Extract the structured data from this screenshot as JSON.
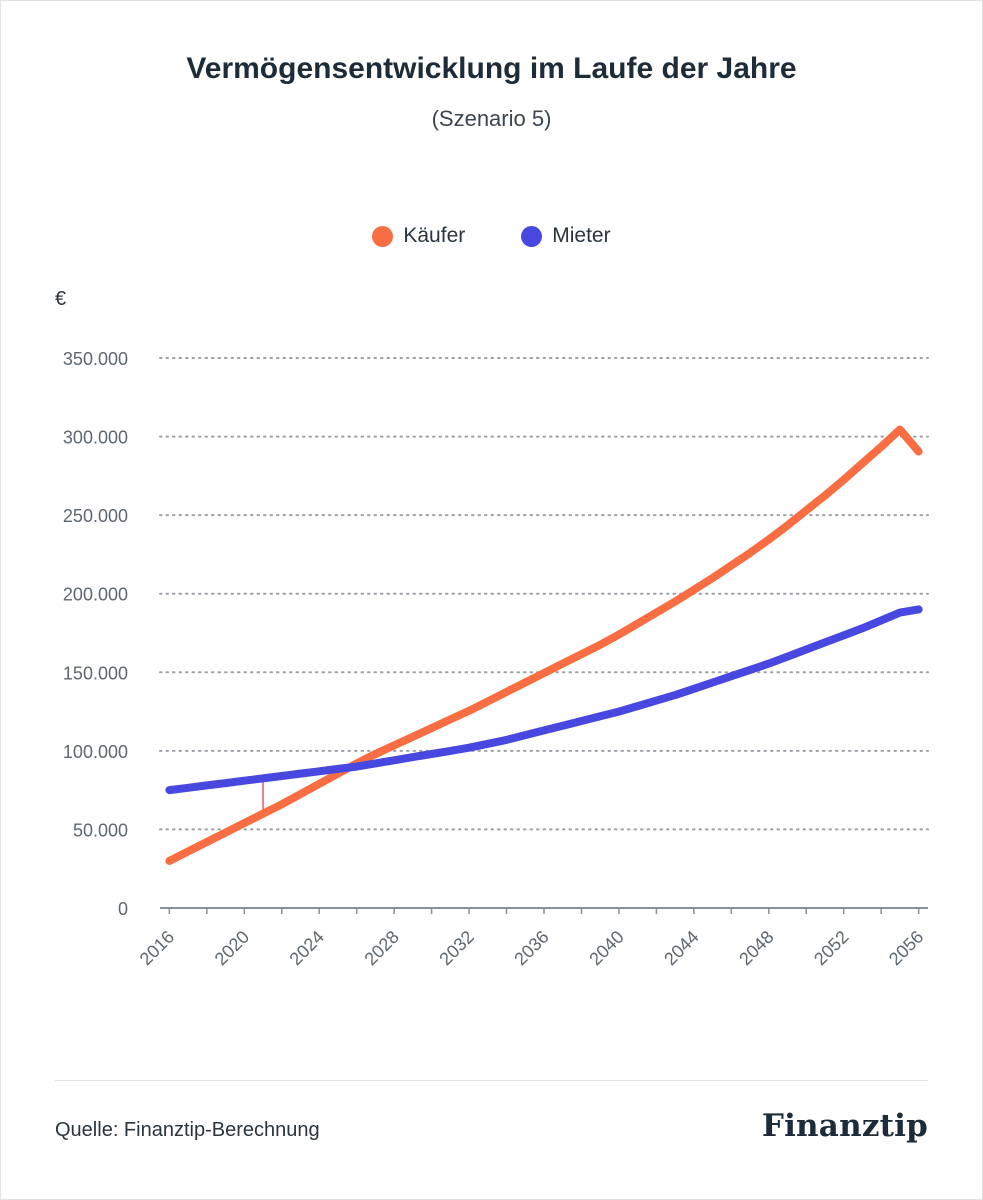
{
  "title": "Vermögensentwicklung im Laufe der Jahre",
  "subtitle": "(Szenario 5)",
  "unit_label": "€",
  "source": "Quelle: Finanztip-Berechnung",
  "logo_text": "Finanztip",
  "colors": {
    "kaeufer": "#f86d41",
    "mieter": "#4848e0",
    "grid": "#9aa0a6",
    "axis": "#8a9096",
    "marker": "#f0566a"
  },
  "chart_data": {
    "type": "line",
    "title": "Vermögensentwicklung im Laufe der Jahre",
    "subtitle": "(Szenario 5)",
    "ylabel": "€",
    "xlim": [
      2015.5,
      2056.5
    ],
    "ylim": [
      0,
      350000
    ],
    "yticks": [
      0,
      50000,
      100000,
      150000,
      200000,
      250000,
      300000,
      350000
    ],
    "ytick_labels": [
      "0",
      "50.000",
      "100.000",
      "150.000",
      "200.000",
      "250.000",
      "300.000",
      "350.000"
    ],
    "xticks": [
      2016,
      2020,
      2024,
      2028,
      2032,
      2036,
      2040,
      2044,
      2048,
      2052,
      2056
    ],
    "xtick_labels": [
      "2016",
      "2020",
      "2024",
      "2028",
      "2032",
      "2036",
      "2040",
      "2044",
      "2048",
      "2052",
      "2056"
    ],
    "grid": "horizontal-dotted",
    "legend": "top-center",
    "x": [
      2016,
      2017,
      2018,
      2019,
      2020,
      2021,
      2022,
      2023,
      2024,
      2025,
      2026,
      2027,
      2028,
      2029,
      2030,
      2031,
      2032,
      2033,
      2034,
      2035,
      2036,
      2037,
      2038,
      2039,
      2040,
      2041,
      2042,
      2043,
      2044,
      2045,
      2046,
      2047,
      2048,
      2049,
      2050,
      2051,
      2052,
      2053,
      2054,
      2055,
      2056
    ],
    "series": [
      {
        "name": "Käufer",
        "values": [
          30000,
          36000,
          42000,
          48000,
          54000,
          60000,
          66000,
          72500,
          79000,
          85500,
          92000,
          98000,
          103500,
          109000,
          114500,
          120000,
          125500,
          131500,
          137500,
          143500,
          149500,
          155500,
          161500,
          167500,
          174000,
          181000,
          188000,
          195000,
          202500,
          210000,
          218000,
          226000,
          234500,
          243500,
          253000,
          262500,
          272500,
          283000,
          293500,
          304500,
          290500
        ]
      },
      {
        "name": "Mieter",
        "values": [
          75000,
          76500,
          78000,
          79500,
          81000,
          82500,
          84000,
          85500,
          87000,
          88500,
          90000,
          92000,
          94000,
          96000,
          98000,
          100000,
          102000,
          104500,
          107000,
          110000,
          113000,
          116000,
          119000,
          122000,
          125000,
          128500,
          132000,
          135500,
          139500,
          143500,
          147500,
          151500,
          155500,
          160000,
          164500,
          169000,
          173500,
          178000,
          183000,
          188000,
          190000
        ]
      }
    ],
    "annotation": {
      "x": 2021,
      "from": 60000,
      "to": 82500,
      "label": ""
    }
  }
}
